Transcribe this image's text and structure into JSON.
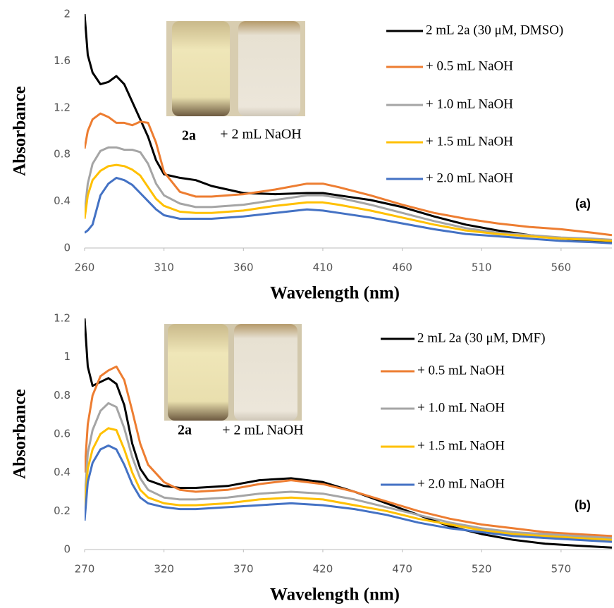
{
  "chart_data": [
    {
      "type": "line",
      "x_label": "Wavelength (nm)",
      "y_label": "Absorbance",
      "annotations": [
        "2a",
        "+ 2 mL NaOH",
        "(a)"
      ],
      "xlim": [
        260,
        592
      ],
      "xticks": [
        260,
        310,
        360,
        410,
        460,
        510,
        560
      ],
      "ylim": [
        0,
        2
      ],
      "yticks": [
        0,
        0.4,
        0.8,
        1.2,
        1.6,
        2
      ],
      "x": [
        260,
        262,
        265,
        270,
        275,
        280,
        285,
        290,
        295,
        300,
        305,
        310,
        320,
        330,
        340,
        360,
        380,
        400,
        410,
        420,
        440,
        460,
        480,
        500,
        520,
        540,
        560,
        580,
        592
      ],
      "series": [
        {
          "name": "2 mL 2a (30 μM, DMSO)",
          "color": "#000000",
          "values": [
            2.0,
            1.65,
            1.5,
            1.4,
            1.42,
            1.47,
            1.4,
            1.25,
            1.1,
            0.95,
            0.75,
            0.63,
            0.6,
            0.58,
            0.53,
            0.47,
            0.46,
            0.47,
            0.47,
            0.45,
            0.41,
            0.35,
            0.27,
            0.2,
            0.15,
            0.11,
            0.08,
            0.06,
            0.05
          ]
        },
        {
          "name": "+ 0.5 mL NaOH",
          "color": "#ed7d31",
          "values": [
            0.85,
            1.0,
            1.1,
            1.15,
            1.12,
            1.07,
            1.07,
            1.05,
            1.08,
            1.07,
            0.9,
            0.65,
            0.48,
            0.44,
            0.44,
            0.46,
            0.5,
            0.55,
            0.55,
            0.52,
            0.45,
            0.37,
            0.3,
            0.25,
            0.21,
            0.18,
            0.16,
            0.13,
            0.11
          ]
        },
        {
          "name": "+ 1.0 mL NaOH",
          "color": "#a5a5a5",
          "values": [
            0.3,
            0.55,
            0.72,
            0.83,
            0.86,
            0.86,
            0.84,
            0.84,
            0.82,
            0.72,
            0.55,
            0.45,
            0.38,
            0.35,
            0.35,
            0.37,
            0.41,
            0.45,
            0.45,
            0.43,
            0.37,
            0.3,
            0.23,
            0.17,
            0.13,
            0.11,
            0.09,
            0.08,
            0.07
          ]
        },
        {
          "name": "+ 1.5 mL NaOH",
          "color": "#ffc000",
          "values": [
            0.25,
            0.45,
            0.58,
            0.66,
            0.7,
            0.71,
            0.7,
            0.67,
            0.62,
            0.52,
            0.42,
            0.36,
            0.31,
            0.3,
            0.3,
            0.32,
            0.36,
            0.39,
            0.39,
            0.37,
            0.32,
            0.26,
            0.2,
            0.15,
            0.12,
            0.1,
            0.08,
            0.07,
            0.06
          ]
        },
        {
          "name": "+ 2.0 mL NaOH",
          "color": "#4472c4",
          "values": [
            0.13,
            0.15,
            0.2,
            0.45,
            0.55,
            0.6,
            0.58,
            0.54,
            0.47,
            0.4,
            0.33,
            0.28,
            0.25,
            0.25,
            0.25,
            0.27,
            0.3,
            0.33,
            0.32,
            0.3,
            0.26,
            0.21,
            0.16,
            0.12,
            0.1,
            0.08,
            0.06,
            0.05,
            0.04
          ]
        }
      ]
    },
    {
      "type": "line",
      "x_label": "Wavelength (nm)",
      "y_label": "Absorbance",
      "annotations": [
        "2a",
        "+ 2 mL NaOH",
        "(b)"
      ],
      "xlim": [
        270,
        602
      ],
      "xticks": [
        270,
        320,
        370,
        420,
        470,
        520,
        570
      ],
      "ylim": [
        0,
        1.2
      ],
      "yticks": [
        0,
        0.2,
        0.4,
        0.6,
        0.8,
        1,
        1.2
      ],
      "x": [
        270,
        272,
        275,
        280,
        285,
        290,
        295,
        300,
        305,
        310,
        320,
        330,
        340,
        360,
        380,
        400,
        420,
        440,
        460,
        480,
        500,
        520,
        540,
        560,
        580,
        602
      ],
      "series": [
        {
          "name": "2 mL 2a (30 μM, DMF)",
          "color": "#000000",
          "values": [
            1.2,
            0.95,
            0.85,
            0.87,
            0.89,
            0.86,
            0.75,
            0.55,
            0.42,
            0.36,
            0.33,
            0.32,
            0.32,
            0.33,
            0.36,
            0.37,
            0.35,
            0.3,
            0.24,
            0.18,
            0.12,
            0.08,
            0.05,
            0.03,
            0.02,
            0.01
          ]
        },
        {
          "name": "+ 0.5 mL NaOH",
          "color": "#ed7d31",
          "values": [
            0.4,
            0.65,
            0.8,
            0.9,
            0.93,
            0.95,
            0.88,
            0.72,
            0.55,
            0.44,
            0.35,
            0.31,
            0.3,
            0.31,
            0.34,
            0.36,
            0.34,
            0.3,
            0.25,
            0.2,
            0.16,
            0.13,
            0.11,
            0.09,
            0.08,
            0.07
          ]
        },
        {
          "name": "+ 1.0 mL NaOH",
          "color": "#a5a5a5",
          "values": [
            0.25,
            0.5,
            0.62,
            0.72,
            0.76,
            0.74,
            0.63,
            0.48,
            0.37,
            0.31,
            0.27,
            0.26,
            0.26,
            0.27,
            0.29,
            0.3,
            0.29,
            0.26,
            0.22,
            0.18,
            0.14,
            0.11,
            0.09,
            0.08,
            0.07,
            0.06
          ]
        },
        {
          "name": "+ 1.5 mL NaOH",
          "color": "#ffc000",
          "values": [
            0.2,
            0.42,
            0.52,
            0.6,
            0.63,
            0.62,
            0.52,
            0.4,
            0.31,
            0.27,
            0.24,
            0.23,
            0.23,
            0.24,
            0.26,
            0.27,
            0.26,
            0.23,
            0.2,
            0.16,
            0.13,
            0.1,
            0.08,
            0.07,
            0.06,
            0.05
          ]
        },
        {
          "name": "+ 2.0 mL NaOH",
          "color": "#4472c4",
          "values": [
            0.15,
            0.35,
            0.45,
            0.52,
            0.54,
            0.52,
            0.44,
            0.34,
            0.27,
            0.24,
            0.22,
            0.21,
            0.21,
            0.22,
            0.23,
            0.24,
            0.23,
            0.21,
            0.18,
            0.14,
            0.11,
            0.09,
            0.07,
            0.06,
            0.05,
            0.04
          ]
        }
      ]
    }
  ]
}
